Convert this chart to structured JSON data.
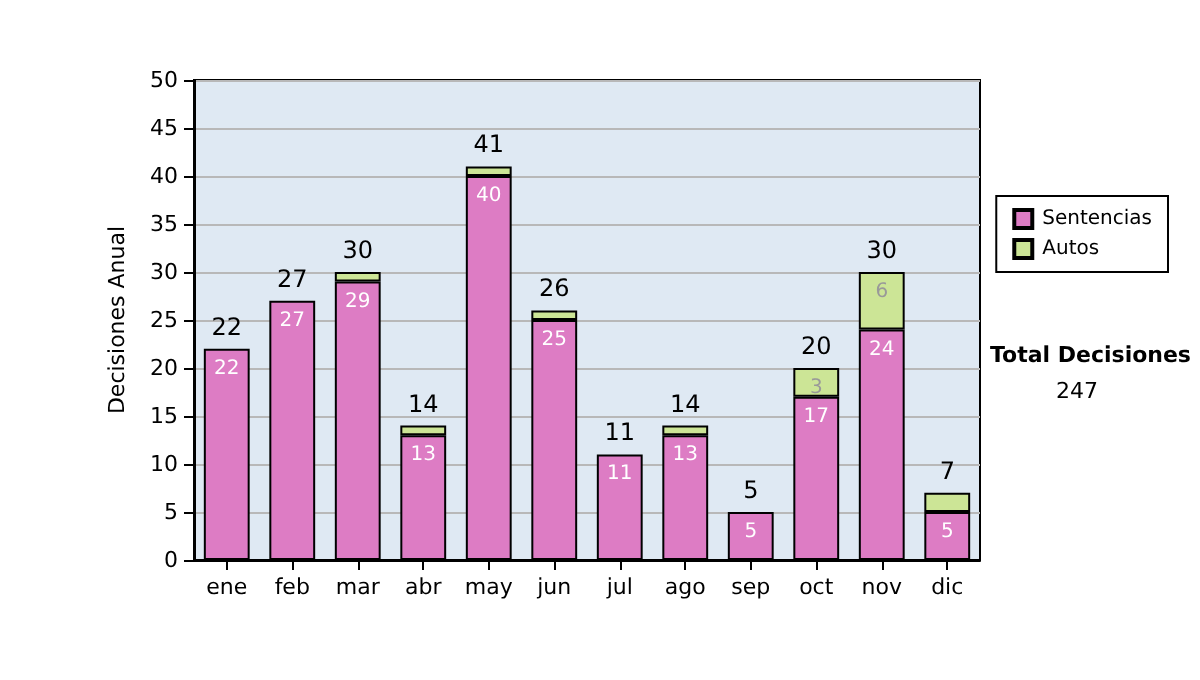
{
  "chart_data": {
    "type": "bar",
    "ylabel": "Decisiones Anual",
    "categories": [
      "ene",
      "feb",
      "mar",
      "abr",
      "may",
      "jun",
      "jul",
      "ago",
      "sep",
      "oct",
      "nov",
      "dic"
    ],
    "series": [
      {
        "name": "Sentencias",
        "color": "#dd7cc4",
        "values": [
          22,
          27,
          29,
          13,
          40,
          25,
          11,
          13,
          5,
          17,
          24,
          5
        ],
        "value_labels": [
          "22",
          "27",
          "29",
          "13",
          "40",
          "25",
          "11",
          "13",
          "5",
          "17",
          "24",
          "5"
        ]
      },
      {
        "name": "Autos",
        "color": "#cce596",
        "values": [
          0,
          0,
          1,
          1,
          1,
          1,
          0,
          1,
          0,
          3,
          6,
          2
        ],
        "value_labels": [
          null,
          null,
          null,
          null,
          null,
          null,
          null,
          null,
          null,
          "3",
          "6",
          null
        ]
      }
    ],
    "stacked": true,
    "totals": [
      "22",
      "27",
      "30",
      "14",
      "41",
      "26",
      "11",
      "14",
      "5",
      "20",
      "30",
      "7"
    ],
    "ylim": [
      0,
      50
    ],
    "yticks": [
      0,
      5,
      10,
      15,
      20,
      25,
      30,
      35,
      40,
      45,
      50
    ],
    "grid": "y",
    "legend": "right",
    "annotations": [
      "Total Decisiones",
      "247"
    ]
  }
}
